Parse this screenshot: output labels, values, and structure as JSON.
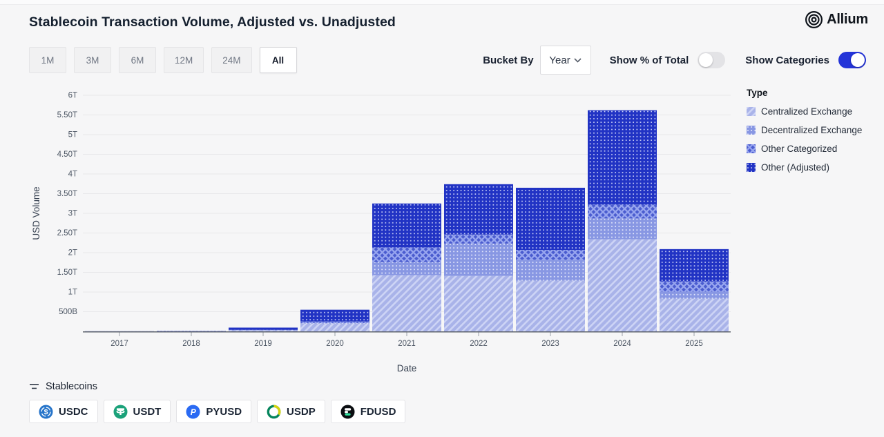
{
  "header": {
    "title": "Stablecoin Transaction Volume, Adjusted vs. Unadjusted",
    "brand": "Allium"
  },
  "controls": {
    "ranges": [
      {
        "label": "1M",
        "active": false
      },
      {
        "label": "3M",
        "active": false
      },
      {
        "label": "6M",
        "active": false
      },
      {
        "label": "12M",
        "active": false
      },
      {
        "label": "24M",
        "active": false
      },
      {
        "label": "All",
        "active": true
      }
    ],
    "bucket_by": {
      "label": "Bucket By",
      "value": "Year"
    },
    "toggles": [
      {
        "label": "Show % of Total",
        "on": false
      },
      {
        "label": "Show Categories",
        "on": true
      }
    ]
  },
  "legend": {
    "title": "Type",
    "items": [
      {
        "label": "Centralized Exchange",
        "pattern": "cex"
      },
      {
        "label": "Decentralized Exchange",
        "pattern": "dex"
      },
      {
        "label": "Other Categorized",
        "pattern": "oc"
      },
      {
        "label": "Other (Adjusted)",
        "pattern": "oa"
      }
    ]
  },
  "chart_data": {
    "type": "bar",
    "stacked": true,
    "unit": "trillions USD",
    "xlabel": "Date",
    "ylabel": "USD Volume",
    "categories": [
      "2017",
      "2018",
      "2019",
      "2020",
      "2021",
      "2022",
      "2023",
      "2024",
      "2025"
    ],
    "series": [
      {
        "name": "Centralized Exchange",
        "pattern": "cex",
        "values": [
          0.001,
          0.004,
          0.033,
          0.2,
          1.43,
          1.41,
          1.29,
          2.34,
          0.83
        ]
      },
      {
        "name": "Decentralized Exchange",
        "pattern": "dex",
        "values": [
          0.0,
          0.001,
          0.002,
          0.01,
          0.33,
          0.82,
          0.53,
          0.53,
          0.18
        ]
      },
      {
        "name": "Other Categorized",
        "pattern": "oc",
        "values": [
          0.0,
          0.001,
          0.003,
          0.04,
          0.37,
          0.23,
          0.25,
          0.35,
          0.26
        ]
      },
      {
        "name": "Other (Adjusted)",
        "pattern": "oa",
        "values": [
          0.002,
          0.006,
          0.058,
          0.3,
          1.12,
          1.28,
          1.58,
          2.4,
          0.82
        ]
      }
    ],
    "totals": [
      0.003,
      0.012,
      0.096,
      0.55,
      3.25,
      3.74,
      3.65,
      5.62,
      2.09
    ],
    "y_ticks": [
      {
        "v": 0.5,
        "label": "500B"
      },
      {
        "v": 1,
        "label": "1T"
      },
      {
        "v": 1.5,
        "label": "1.50T"
      },
      {
        "v": 2,
        "label": "2T"
      },
      {
        "v": 2.5,
        "label": "2.50T"
      },
      {
        "v": 3,
        "label": "3T"
      },
      {
        "v": 3.5,
        "label": "3.50T"
      },
      {
        "v": 4,
        "label": "4T"
      },
      {
        "v": 4.5,
        "label": "4.50T"
      },
      {
        "v": 5,
        "label": "5T"
      },
      {
        "v": 5.5,
        "label": "5.50T"
      },
      {
        "v": 6,
        "label": "6T"
      }
    ],
    "ylim": [
      0,
      6.25
    ],
    "grid": true,
    "legend_position": "right"
  },
  "footer": {
    "filter_label": "Stablecoins",
    "tokens": [
      {
        "label": "USDC",
        "icon": "usdc"
      },
      {
        "label": "USDT",
        "icon": "usdt"
      },
      {
        "label": "PYUSD",
        "icon": "pyusd"
      },
      {
        "label": "USDP",
        "icon": "usdp"
      },
      {
        "label": "FDUSD",
        "icon": "fdusd"
      }
    ]
  },
  "colors": {
    "accent": "#2434d8",
    "toggle_off": "#e3e3e6",
    "axis": "#5b6069",
    "grid": "#e8e8ea",
    "tick_text": "#4b5563",
    "series_patterns": {
      "cex": {
        "bg": "#a9b3e9",
        "fg": "#cdd4f5",
        "kind": "stripes"
      },
      "dex": {
        "bg": "#8897e3",
        "fg": "#e9ecfc",
        "kind": "dots"
      },
      "oc": {
        "bg": "#4a5ccf",
        "fg": "#97a5ef",
        "kind": "crosshatch"
      },
      "oa": {
        "bg": "#2133c4",
        "fg": "#c9cff6",
        "kind": "dots"
      }
    },
    "token_icons": {
      "usdc": "#2775ca",
      "usdt": "#1ba27a",
      "pyusd": "#2a6af3",
      "usdp_green": "#05855c",
      "usdp_yellow": "#d6d30e",
      "fdusd_bg": "#0b0e11",
      "fdusd_green": "#2fe2a0"
    }
  }
}
